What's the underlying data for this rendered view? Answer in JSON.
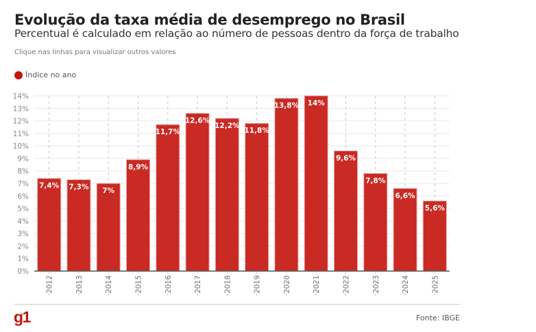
{
  "header": {
    "title": "Evolução da taxa média de desemprego no Brasil",
    "subtitle": "Percentual é calculado em relação ao número de pessoas dentro da força de trabalho",
    "hint": "Clique nas linhas para visualizar outros valores"
  },
  "legend": {
    "label": "Índice no ano",
    "color": "#c4170c"
  },
  "footer": {
    "logo": "g1",
    "source": "Fonte: IBGE"
  },
  "chart_data": {
    "type": "bar",
    "title": "Evolução da taxa média de desemprego no Brasil",
    "subtitle": "Percentual é calculado em relação ao número de pessoas dentro da força de trabalho",
    "xlabel": "",
    "ylabel": "",
    "categories": [
      "2012",
      "2013",
      "2014",
      "2015",
      "2016",
      "2017",
      "2018",
      "2019",
      "2020",
      "2021",
      "2022",
      "2023",
      "2024",
      "2025"
    ],
    "series": [
      {
        "name": "Índice no ano",
        "color": "#c92a23",
        "values": [
          7.4,
          7.3,
          7.0,
          8.9,
          11.7,
          12.6,
          12.2,
          11.8,
          13.8,
          14.0,
          9.6,
          7.8,
          6.6,
          5.6
        ],
        "labels": [
          "7,4%",
          "7,3%",
          "7%",
          "8,9%",
          "11,7%",
          "12,6%",
          "12,2%",
          "11,8%",
          "13,8%",
          "14%",
          "9,6%",
          "7,8%",
          "6,6%",
          "5,6%"
        ]
      }
    ],
    "ylim": [
      0,
      14
    ],
    "yticks": [
      "0%",
      "1%",
      "2%",
      "3%",
      "4%",
      "5%",
      "6%",
      "7%",
      "8%",
      "9%",
      "10%",
      "11%",
      "12%",
      "13%",
      "14%"
    ],
    "grid": true,
    "legend_position": "top-left"
  }
}
